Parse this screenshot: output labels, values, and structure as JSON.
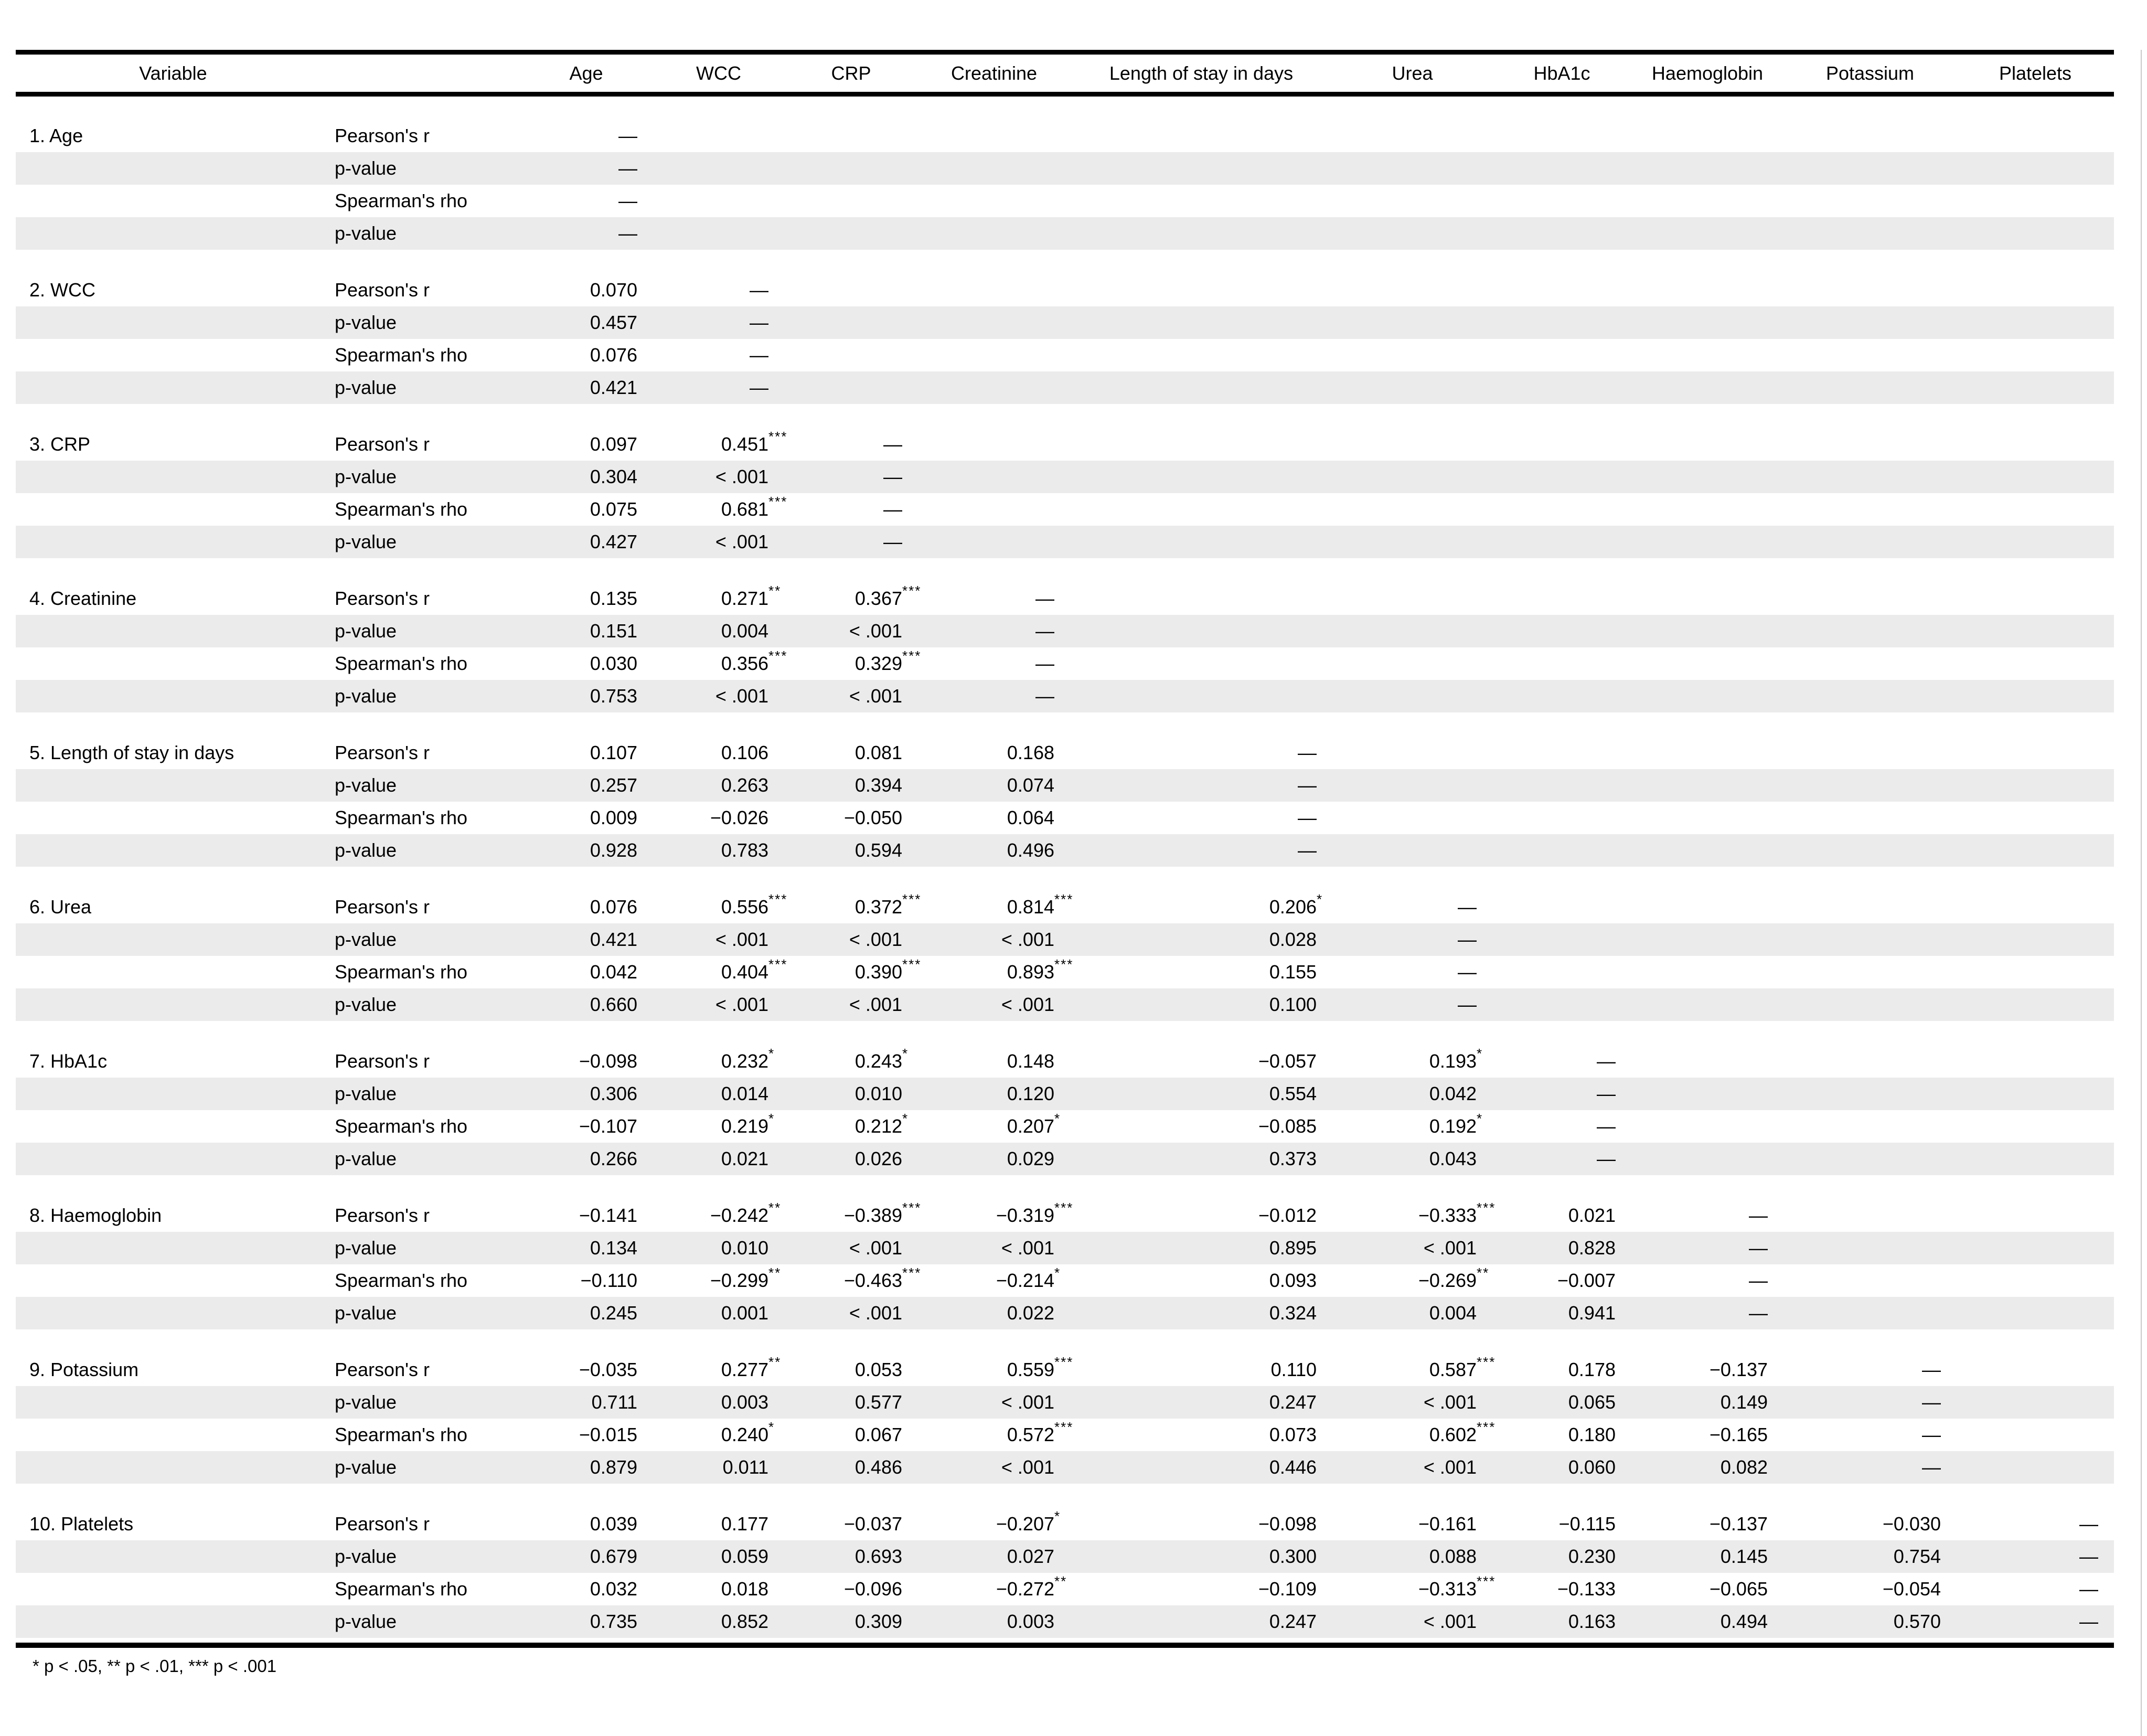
{
  "table": {
    "variable_header": "Variable",
    "columns": [
      "Age",
      "WCC",
      "CRP",
      "Creatinine",
      "Length of stay in days",
      "Urea",
      "HbA1c",
      "Haemoglobin",
      "Potassium",
      "Platelets"
    ],
    "stat_labels": [
      "Pearson's r",
      "p-value",
      "Spearman's rho",
      "p-value"
    ],
    "dash": "—",
    "groups": [
      {
        "label": "1. Age",
        "rows": [
          [
            "—"
          ],
          [
            "—"
          ],
          [
            "—"
          ],
          [
            "—"
          ]
        ]
      },
      {
        "label": "2. WCC",
        "rows": [
          [
            "0.070",
            "—"
          ],
          [
            "0.457",
            "—"
          ],
          [
            "0.076",
            "—"
          ],
          [
            "0.421",
            "—"
          ]
        ]
      },
      {
        "label": "3. CRP",
        "rows": [
          [
            "0.097",
            "0.451***",
            "—"
          ],
          [
            "0.304",
            "< .001",
            "—"
          ],
          [
            "0.075",
            "0.681***",
            "—"
          ],
          [
            "0.427",
            "< .001",
            "—"
          ]
        ]
      },
      {
        "label": "4. Creatinine",
        "rows": [
          [
            "0.135",
            "0.271**",
            "0.367***",
            "—"
          ],
          [
            "0.151",
            "0.004",
            "< .001",
            "—"
          ],
          [
            "0.030",
            "0.356***",
            "0.329***",
            "—"
          ],
          [
            "0.753",
            "< .001",
            "< .001",
            "—"
          ]
        ]
      },
      {
        "label": "5. Length of stay in days",
        "rows": [
          [
            "0.107",
            "0.106",
            "0.081",
            "0.168",
            "—"
          ],
          [
            "0.257",
            "0.263",
            "0.394",
            "0.074",
            "—"
          ],
          [
            "0.009",
            "−0.026",
            "−0.050",
            "0.064",
            "—"
          ],
          [
            "0.928",
            "0.783",
            "0.594",
            "0.496",
            "—"
          ]
        ]
      },
      {
        "label": "6. Urea",
        "rows": [
          [
            "0.076",
            "0.556***",
            "0.372***",
            "0.814***",
            "0.206*",
            "—"
          ],
          [
            "0.421",
            "< .001",
            "< .001",
            "< .001",
            "0.028",
            "—"
          ],
          [
            "0.042",
            "0.404***",
            "0.390***",
            "0.893***",
            "0.155",
            "—"
          ],
          [
            "0.660",
            "< .001",
            "< .001",
            "< .001",
            "0.100",
            "—"
          ]
        ]
      },
      {
        "label": "7. HbA1c",
        "rows": [
          [
            "−0.098",
            "0.232*",
            "0.243*",
            "0.148",
            "−0.057",
            "0.193*",
            "—"
          ],
          [
            "0.306",
            "0.014",
            "0.010",
            "0.120",
            "0.554",
            "0.042",
            "—"
          ],
          [
            "−0.107",
            "0.219*",
            "0.212*",
            "0.207*",
            "−0.085",
            "0.192*",
            "—"
          ],
          [
            "0.266",
            "0.021",
            "0.026",
            "0.029",
            "0.373",
            "0.043",
            "—"
          ]
        ]
      },
      {
        "label": "8. Haemoglobin",
        "rows": [
          [
            "−0.141",
            "−0.242**",
            "−0.389***",
            "−0.319***",
            "−0.012",
            "−0.333***",
            "0.021",
            "—"
          ],
          [
            "0.134",
            "0.010",
            "< .001",
            "< .001",
            "0.895",
            "< .001",
            "0.828",
            "—"
          ],
          [
            "−0.110",
            "−0.299**",
            "−0.463***",
            "−0.214*",
            "0.093",
            "−0.269**",
            "−0.007",
            "—"
          ],
          [
            "0.245",
            "0.001",
            "< .001",
            "0.022",
            "0.324",
            "0.004",
            "0.941",
            "—"
          ]
        ]
      },
      {
        "label": "9. Potassium",
        "rows": [
          [
            "−0.035",
            "0.277**",
            "0.053",
            "0.559***",
            "0.110",
            "0.587***",
            "0.178",
            "−0.137",
            "—"
          ],
          [
            "0.711",
            "0.003",
            "0.577",
            "< .001",
            "0.247",
            "< .001",
            "0.065",
            "0.149",
            "—"
          ],
          [
            "−0.015",
            "0.240*",
            "0.067",
            "0.572***",
            "0.073",
            "0.602***",
            "0.180",
            "−0.165",
            "—"
          ],
          [
            "0.879",
            "0.011",
            "0.486",
            "< .001",
            "0.446",
            "< .001",
            "0.060",
            "0.082",
            "—"
          ]
        ]
      },
      {
        "label": "10. Platelets",
        "rows": [
          [
            "0.039",
            "0.177",
            "−0.037",
            "−0.207*",
            "−0.098",
            "−0.161",
            "−0.115",
            "−0.137",
            "−0.030",
            "—"
          ],
          [
            "0.679",
            "0.059",
            "0.693",
            "0.027",
            "0.300",
            "0.088",
            "0.230",
            "0.145",
            "0.754",
            "—"
          ],
          [
            "0.032",
            "0.018",
            "−0.096",
            "−0.272**",
            "−0.109",
            "−0.313***",
            "−0.133",
            "−0.065",
            "−0.054",
            "—"
          ],
          [
            "0.735",
            "0.852",
            "0.309",
            "0.003",
            "0.247",
            "< .001",
            "0.163",
            "0.494",
            "0.570",
            "—"
          ]
        ]
      }
    ],
    "footnote": "* p < .05, ** p < .01, *** p < .001"
  },
  "colors": {
    "stripe": "#ebebeb",
    "rule": "#000000",
    "text": "#000000",
    "background": "#ffffff"
  }
}
